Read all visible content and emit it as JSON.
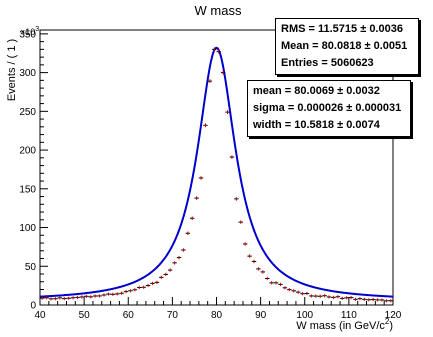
{
  "chart_data": {
    "type": "scatter",
    "title": "W mass",
    "xlabel": "W mass (in GeV/c",
    "xlabel_sup": "2",
    "xlabel_close": ")",
    "ylabel": "Events / ( 1 )",
    "y_multiplier": "×10",
    "y_multiplier_exp": "3",
    "xlim": [
      40,
      120
    ],
    "ylim": [
      0,
      355000
    ],
    "x_ticks": [
      40,
      50,
      60,
      70,
      80,
      90,
      100,
      110,
      120
    ],
    "y_ticks": [
      0,
      50,
      100,
      150,
      200,
      250,
      300,
      350
    ],
    "y_tick_scale": 1000,
    "data_color": "#000000",
    "data_error_color": "#cc0000",
    "series": [
      {
        "name": "data",
        "x": [
          40.5,
          41.5,
          42.5,
          43.5,
          44.5,
          45.5,
          46.5,
          47.5,
          48.5,
          49.5,
          50.5,
          51.5,
          52.5,
          53.5,
          54.5,
          55.5,
          56.5,
          57.5,
          58.5,
          59.5,
          60.5,
          61.5,
          62.5,
          63.5,
          64.5,
          65.5,
          66.5,
          67.5,
          68.5,
          69.5,
          70.5,
          71.5,
          72.5,
          73.5,
          74.5,
          75.5,
          76.5,
          77.5,
          78.5,
          79.5,
          80.5,
          81.5,
          82.5,
          83.5,
          84.5,
          85.5,
          86.5,
          87.5,
          88.5,
          89.5,
          90.5,
          91.5,
          92.5,
          93.5,
          94.5,
          95.5,
          96.5,
          97.5,
          98.5,
          99.5,
          100.5,
          101.5,
          102.5,
          103.5,
          104.5,
          105.5,
          106.5,
          107.5,
          108.5,
          109.5,
          110.5,
          111.5,
          112.5,
          113.5,
          114.5,
          115.5,
          116.5,
          117.5,
          118.5,
          119.5
        ],
        "y": [
          8900,
          9400,
          7900,
          8100,
          9200,
          8200,
          8700,
          9300,
          9800,
          10400,
          11200,
          10500,
          11600,
          11700,
          12900,
          14100,
          13800,
          14300,
          15200,
          17300,
          18400,
          19700,
          22500,
          22900,
          25100,
          27900,
          29200,
          35700,
          39500,
          45100,
          54400,
          61200,
          71000,
          92600,
          112000,
          138000,
          164000,
          232000,
          289000,
          330000,
          327000,
          300000,
          249000,
          191000,
          137000,
          107000,
          78800,
          63100,
          56200,
          46600,
          42700,
          34200,
          28600,
          28600,
          26600,
          22200,
          19800,
          18300,
          16600,
          14600,
          14800,
          11700,
          11500,
          11300,
          12000,
          10400,
          9820,
          10700,
          8580,
          9300,
          9550,
          7310,
          8200,
          7320,
          6710,
          7020,
          6590,
          6460,
          5400,
          5480
        ]
      }
    ],
    "fit": {
      "name": "fit",
      "color": "#0000cc",
      "mean": 80.0069,
      "sigma": 2.6e-05,
      "width": 10.5818,
      "background": 5200,
      "y_peak": 332000
    }
  },
  "stats": {
    "rows": [
      {
        "label": "RMS",
        "value": "11.5715",
        "err": "0.0036"
      },
      {
        "label": "Mean",
        "value": "80.0818",
        "err": "0.0051"
      },
      {
        "label": "Entries",
        "value": "5060623",
        "err": ""
      }
    ]
  },
  "params": {
    "rows": [
      {
        "label": "mean",
        "value": "80.0069",
        "err": "0.0032"
      },
      {
        "label": "sigma",
        "value": "0.000026",
        "err": "0.000031"
      },
      {
        "label": "width",
        "value": "10.5818",
        "err": "0.0074"
      }
    ]
  },
  "symbols": {
    "eq": " = ",
    "pm": " ± "
  }
}
